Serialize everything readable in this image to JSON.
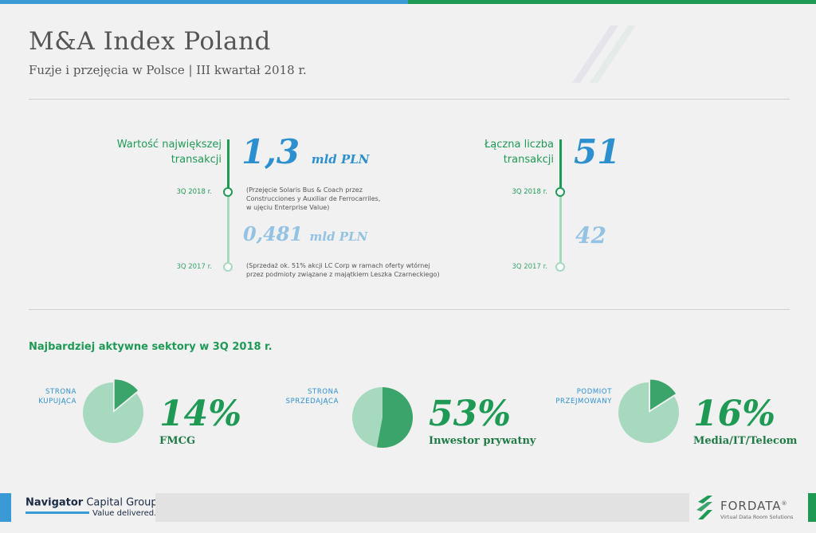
{
  "header": {
    "title": "M&A Index Poland",
    "subtitle": "Fuzje i przejęcia w Polsce | III kwartał 2018 r."
  },
  "largest_deal": {
    "label_line1": "Wartość największej",
    "label_line2": "transakcji",
    "current_value": "1,3",
    "current_unit": "mld PLN",
    "current_quarter": "3Q 2018 r.",
    "current_note": [
      "(Przejęcie Solaris Bus & Coach przez",
      "Construcciones y Auxiliar de Ferrocarriles,",
      "w ujęciu Enterprise Value)"
    ],
    "previous_value": "0,481",
    "previous_unit": "mld PLN",
    "previous_quarter": "3Q 2017 r.",
    "previous_note": [
      "(Sprzedaż ok. 51% akcji LC Corp w ramach oferty wtórnej",
      "przez podmioty związane z majątkiem Leszka Czarneckiego)"
    ]
  },
  "deal_count": {
    "label_line1": "Łączna liczba",
    "label_line2": "transakcji",
    "current_value": "51",
    "current_quarter": "3Q 2018 r.",
    "previous_value": "42",
    "previous_quarter": "3Q 2017 r."
  },
  "sectors": {
    "title": "Najbardziej aktywne sektory w 3Q 2018 r.",
    "items": [
      {
        "side_line1": "STRONA",
        "side_line2": "KUPUJĄCA",
        "percent": "14%",
        "share": 0.14,
        "sector": "FMCG"
      },
      {
        "side_line1": "STRONA",
        "side_line2": "SPRZEDAJĄCA",
        "percent": "53%",
        "share": 0.53,
        "sector": "Inwestor prywatny"
      },
      {
        "side_line1": "PODMIOT",
        "side_line2": "PRZEJMOWANY",
        "percent": "16%",
        "share": 0.16,
        "sector": "Media/IT/Telecom"
      }
    ]
  },
  "footer": {
    "navigator_name_bold": "Navigator",
    "navigator_name_light": " Capital Group",
    "navigator_reg": "®",
    "navigator_tagline": "Value delivered.",
    "fordata_name": "FORDATA",
    "fordata_reg": "®",
    "fordata_tagline": "Virtual Data Room Solutions"
  },
  "colors": {
    "green": "#1f9a55",
    "blue": "#2c8fce",
    "light_blue": "#93c2e2",
    "pie_dark": "#3aa46a",
    "pie_light": "#a6d9bd"
  }
}
